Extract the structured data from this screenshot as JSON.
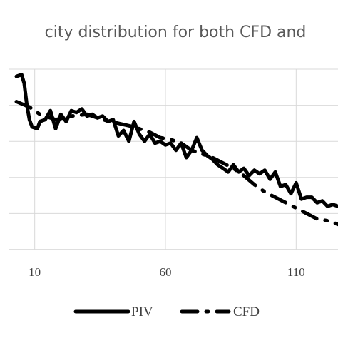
{
  "chart_data": {
    "type": "line",
    "title": "city distribution for both CFD and",
    "xlabel": "",
    "ylabel": "",
    "x_ticks": [
      10,
      60,
      110
    ],
    "xlim": [
      0,
      126
    ],
    "ylim": [
      0,
      5
    ],
    "grid": true,
    "legend_position": "bottom",
    "series": [
      {
        "name": "PIV",
        "color": "#000000",
        "style": "solid",
        "x": [
          3,
          5,
          6,
          7,
          8,
          9,
          11,
          12,
          14,
          16,
          18,
          20,
          22,
          24,
          26,
          28,
          30,
          32,
          34,
          36,
          38,
          40,
          42,
          44,
          46,
          48,
          50,
          52,
          54,
          56,
          58,
          60,
          62,
          64,
          66,
          68,
          70,
          72,
          74,
          76,
          78,
          80,
          82,
          84,
          86,
          88,
          90,
          92,
          94,
          96,
          98,
          100,
          102,
          104,
          106,
          108,
          110,
          112,
          114,
          116,
          118,
          120,
          122,
          124,
          126
        ],
        "y": [
          4.8,
          4.85,
          4.6,
          4.0,
          3.6,
          3.4,
          3.35,
          3.55,
          3.6,
          3.85,
          3.35,
          3.75,
          3.55,
          3.85,
          3.8,
          3.9,
          3.7,
          3.75,
          3.65,
          3.7,
          3.55,
          3.6,
          3.15,
          3.3,
          3.0,
          3.55,
          3.2,
          3.0,
          3.2,
          2.95,
          3.0,
          2.9,
          2.95,
          2.75,
          2.95,
          2.55,
          2.75,
          3.1,
          2.75,
          2.6,
          2.5,
          2.35,
          2.25,
          2.15,
          2.35,
          2.15,
          2.25,
          2.05,
          2.2,
          2.1,
          2.2,
          1.95,
          2.15,
          1.75,
          1.8,
          1.55,
          1.85,
          1.4,
          1.45,
          1.45,
          1.3,
          1.35,
          1.2,
          1.25,
          1.2
        ],
        "line_width": 5
      },
      {
        "name": "CFD",
        "color": "#000000",
        "style": "dash-dot",
        "x": [
          3,
          8,
          12,
          18,
          24,
          30,
          36,
          42,
          48,
          54,
          58,
          62,
          66,
          70,
          74,
          78,
          82,
          86,
          90,
          94,
          98,
          102,
          106,
          110,
          114,
          118,
          122,
          126
        ],
        "y": [
          4.1,
          3.95,
          3.75,
          3.6,
          3.7,
          3.75,
          3.6,
          3.5,
          3.4,
          3.25,
          3.1,
          3.05,
          2.95,
          2.75,
          2.65,
          2.55,
          2.4,
          2.25,
          2.05,
          1.8,
          1.6,
          1.45,
          1.3,
          1.15,
          1.0,
          0.85,
          0.8,
          0.7
        ],
        "line_width": 5
      }
    ]
  }
}
